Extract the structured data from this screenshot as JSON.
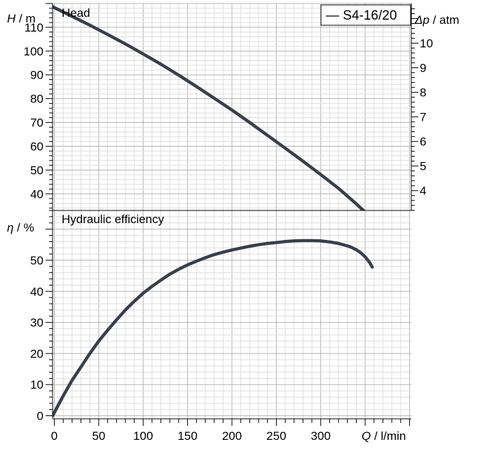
{
  "colors": {
    "curve": "#383f4c",
    "grid_major": "#b3b3b3",
    "grid_minor": "#dedede",
    "frame": "#000000",
    "background": "#ffffff"
  },
  "chart_data": [
    {
      "type": "line",
      "title": "Head",
      "xlabel": "",
      "ylabel_symbol": "H",
      "ylabel_unit": " / m",
      "y2label_symbol": "Δp",
      "y2label_unit": " / atm",
      "xlim": [
        -2,
        402
      ],
      "ylim": [
        33,
        120
      ],
      "y2lim": [
        3.193,
        11.614
      ],
      "yticks": [
        40,
        50,
        60,
        70,
        80,
        90,
        100,
        110
      ],
      "ytick_labels": [
        "40",
        "50",
        "60",
        "70",
        "80",
        "90",
        "100",
        "110"
      ],
      "y2ticks": [
        4,
        5,
        6,
        7,
        8,
        9,
        10
      ],
      "y2tick_labels": [
        "4",
        "5",
        "6",
        "7",
        "8",
        "9",
        "10"
      ],
      "grid": true,
      "legend": {
        "placement": "top-right",
        "entries": [
          "— S4-16/20"
        ]
      },
      "series": [
        {
          "name": "S4-16/20",
          "x": [
            -2,
            0,
            20,
            40,
            60,
            80,
            100,
            120,
            140,
            160,
            180,
            200,
            220,
            240,
            260,
            280,
            300,
            320,
            340,
            355
          ],
          "y": [
            118.7,
            118.3,
            114.6,
            110.9,
            107.0,
            103.0,
            98.8,
            94.5,
            89.9,
            85.1,
            80.2,
            75.2,
            70.0,
            64.6,
            59.2,
            53.7,
            48.1,
            42.3,
            35.8,
            30.6
          ]
        }
      ]
    },
    {
      "type": "line",
      "title": "Hydraulic efficiency",
      "xlabel_symbol": "Q",
      "xlabel_unit": " / l/min",
      "ylabel_symbol": "η",
      "ylabel_unit": " / %",
      "xlim": [
        -2,
        402
      ],
      "ylim": [
        -1,
        66
      ],
      "xticks": [
        0,
        50,
        100,
        150,
        200,
        250,
        300
      ],
      "xtick_labels": [
        "0",
        "50",
        "100",
        "150",
        "200",
        "250",
        "300"
      ],
      "yticks": [
        0,
        10,
        20,
        30,
        40,
        50
      ],
      "ytick_labels": [
        "0",
        "10",
        "20",
        "30",
        "40",
        "50"
      ],
      "grid": true,
      "series": [
        {
          "name": "S4-16/20",
          "x": [
            -2,
            0,
            10,
            20,
            30,
            40,
            50,
            60,
            70,
            80,
            90,
            100,
            110,
            120,
            130,
            140,
            150,
            160,
            170,
            180,
            190,
            200,
            210,
            220,
            230,
            240,
            250,
            260,
            270,
            280,
            290,
            300,
            310,
            320,
            330,
            335,
            340,
            345,
            350,
            355,
            358
          ],
          "y": [
            0,
            1.0,
            6.4,
            11.4,
            15.7,
            20.0,
            24.0,
            27.5,
            30.8,
            34.0,
            36.8,
            39.4,
            41.6,
            43.6,
            45.5,
            47.1,
            48.5,
            49.7,
            50.8,
            51.8,
            52.6,
            53.3,
            53.9,
            54.5,
            55.0,
            55.4,
            55.7,
            56.0,
            56.2,
            56.3,
            56.3,
            56.2,
            55.9,
            55.4,
            54.6,
            54.1,
            53.4,
            52.4,
            51.1,
            49.3,
            47.8
          ]
        }
      ]
    }
  ]
}
